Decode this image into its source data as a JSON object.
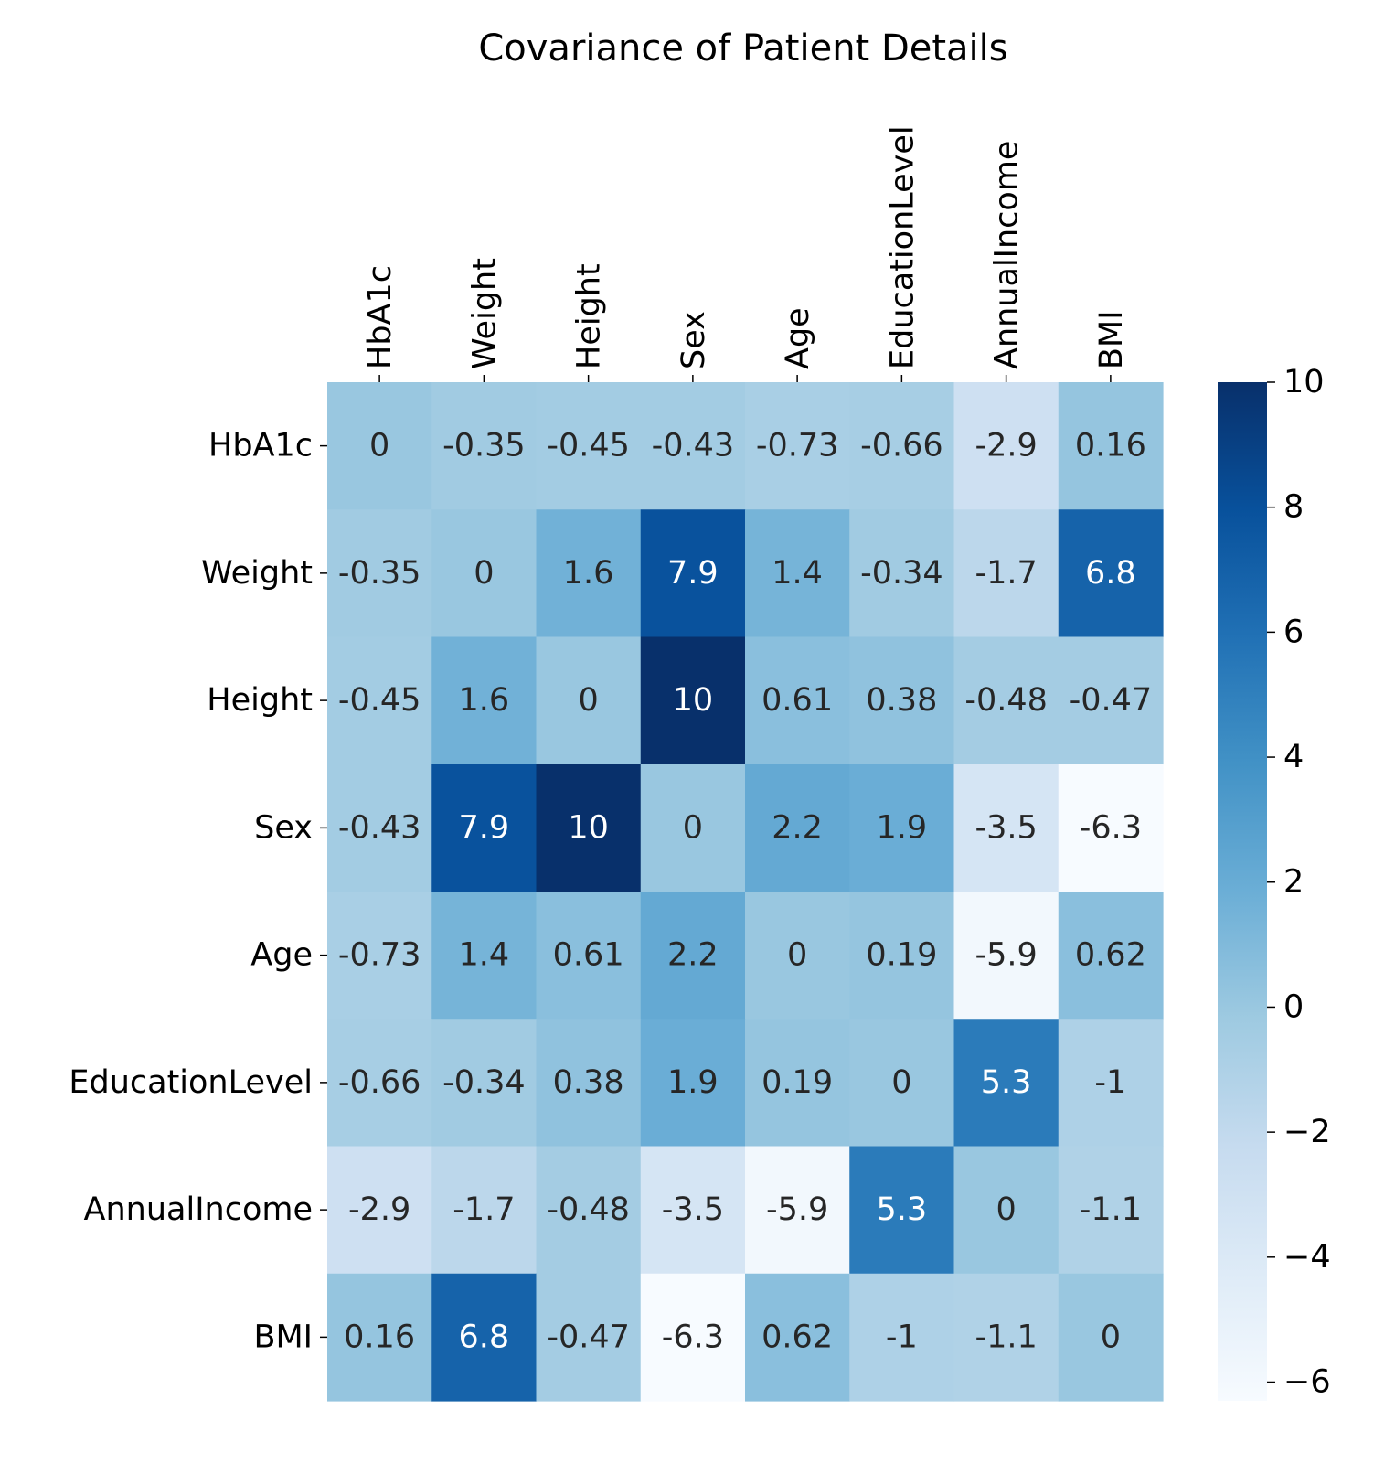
{
  "chart_data": {
    "type": "heatmap",
    "title": "Covariance of Patient Details",
    "xlabel": "",
    "ylabel": "",
    "x_categories": [
      "HbA1c",
      "Weight",
      "Height",
      "Sex",
      "Age",
      "EducationLevel",
      "AnnualIncome",
      "BMI"
    ],
    "y_categories": [
      "HbA1c",
      "Weight",
      "Height",
      "Sex",
      "Age",
      "EducationLevel",
      "AnnualIncome",
      "BMI"
    ],
    "values": [
      [
        0,
        -0.35,
        -0.45,
        -0.43,
        -0.73,
        -0.66,
        -2.9,
        0.16
      ],
      [
        -0.35,
        0,
        1.6,
        7.9,
        1.4,
        -0.34,
        -1.7,
        6.8
      ],
      [
        -0.45,
        1.6,
        0,
        10,
        0.61,
        0.38,
        -0.48,
        -0.47
      ],
      [
        -0.43,
        7.9,
        10,
        0,
        2.2,
        1.9,
        -3.5,
        -6.3
      ],
      [
        -0.73,
        1.4,
        0.61,
        2.2,
        0,
        0.19,
        -5.9,
        0.62
      ],
      [
        -0.66,
        -0.34,
        0.38,
        1.9,
        0.19,
        0,
        5.3,
        -1
      ],
      [
        -2.9,
        -1.7,
        -0.48,
        -3.5,
        -5.9,
        5.3,
        0,
        -1.1
      ],
      [
        0.16,
        6.8,
        -0.47,
        -6.3,
        0.62,
        -1,
        -1.1,
        0
      ]
    ],
    "annotations": [
      [
        "0",
        "-0.35",
        "-0.45",
        "-0.43",
        "-0.73",
        "-0.66",
        "-2.9",
        "0.16"
      ],
      [
        "-0.35",
        "0",
        "1.6",
        "7.9",
        "1.4",
        "-0.34",
        "-1.7",
        "6.8"
      ],
      [
        "-0.45",
        "1.6",
        "0",
        "10",
        "0.61",
        "0.38",
        "-0.48",
        "-0.47"
      ],
      [
        "-0.43",
        "7.9",
        "10",
        "0",
        "2.2",
        "1.9",
        "-3.5",
        "-6.3"
      ],
      [
        "-0.73",
        "1.4",
        "0.61",
        "2.2",
        "0",
        "0.19",
        "-5.9",
        "0.62"
      ],
      [
        "-0.66",
        "-0.34",
        "0.38",
        "1.9",
        "0.19",
        "0",
        "5.3",
        "-1"
      ],
      [
        "-2.9",
        "-1.7",
        "-0.48",
        "-3.5",
        "-5.9",
        "5.3",
        "0",
        "-1.1"
      ],
      [
        "0.16",
        "6.8",
        "-0.47",
        "-6.3",
        "0.62",
        "-1",
        "-1.1",
        "0"
      ]
    ],
    "x_tick_position": "top",
    "x_tick_rotation": "vertical",
    "colormap": "Blues",
    "colormap_stops": [
      "#f7fbff",
      "#deebf7",
      "#c6dbef",
      "#9ecae1",
      "#6baed6",
      "#4292c6",
      "#2171b5",
      "#08519c",
      "#08306b"
    ],
    "vmin": -6.3,
    "vmax": 10,
    "colorbar": {
      "ticks": [
        10,
        8,
        6,
        4,
        2,
        0,
        -2,
        -4,
        -6
      ],
      "tick_labels": [
        "10",
        "8",
        "6",
        "4",
        "2",
        "0",
        "−2",
        "−4",
        "−6"
      ]
    },
    "text_color_dark": "#262626",
    "text_color_light": "#ffffff"
  }
}
